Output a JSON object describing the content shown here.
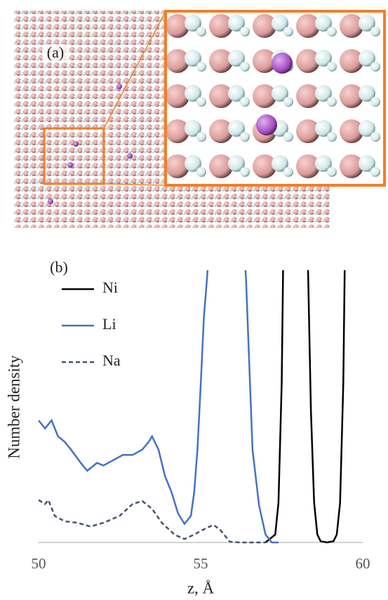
{
  "chart_data": {
    "type": "line",
    "panel_labels": [
      "(a)",
      "(b)"
    ],
    "xlabel": "z, Å",
    "ylabel": "Number density",
    "xlim": [
      50,
      60
    ],
    "xticks": [
      50,
      55,
      60
    ],
    "ylim": [
      0,
      100
    ],
    "legend": "upper left",
    "series": [
      {
        "name": "Ni",
        "color": "#000000",
        "dash": "solid",
        "x": [
          57.0,
          57.3,
          57.4,
          57.5,
          57.55,
          58.3,
          58.4,
          58.5,
          58.6,
          58.7,
          58.9,
          59.1,
          59.2,
          59.3,
          59.4,
          59.45
        ],
        "values": [
          0,
          3,
          15,
          60,
          110,
          110,
          50,
          15,
          3,
          0.5,
          0,
          0.5,
          3,
          15,
          60,
          110
        ]
      },
      {
        "name": "Li",
        "color": "#4472c4",
        "dash": "solid",
        "x": [
          50.0,
          50.2,
          50.4,
          50.6,
          50.8,
          51.0,
          51.3,
          51.5,
          51.8,
          52.0,
          52.3,
          52.6,
          52.9,
          53.2,
          53.4,
          53.5,
          53.7,
          53.9,
          54.1,
          54.3,
          54.5,
          54.7,
          54.8,
          54.9,
          55.0,
          55.1,
          55.2,
          55.3,
          56.3,
          56.4,
          56.5,
          56.6,
          56.8,
          57.0,
          57.2,
          57.4
        ],
        "values": [
          46,
          43,
          46,
          40,
          38,
          35,
          30,
          27,
          30,
          29,
          31,
          33,
          33,
          35,
          38,
          40,
          35,
          25,
          19,
          11,
          7,
          10,
          19,
          35,
          59,
          85,
          100,
          120,
          120,
          99,
          67,
          35,
          14,
          3,
          0,
          0
        ]
      },
      {
        "name": "Na",
        "color": "#44546a",
        "dash": "dashed",
        "x": [
          50.0,
          50.2,
          50.3,
          50.5,
          50.8,
          51.2,
          51.6,
          52.0,
          52.5,
          52.9,
          53.2,
          53.5,
          53.8,
          54.2,
          54.5,
          54.8,
          55.2,
          55.4,
          55.6,
          55.9,
          56.2,
          57.0
        ],
        "values": [
          16,
          14.5,
          16,
          10,
          8,
          7.4,
          6,
          7.4,
          10,
          14.5,
          15.6,
          12.7,
          7.4,
          2.9,
          1.3,
          3,
          5.6,
          6.6,
          4.8,
          0.3,
          0,
          0
        ]
      }
    ]
  }
}
